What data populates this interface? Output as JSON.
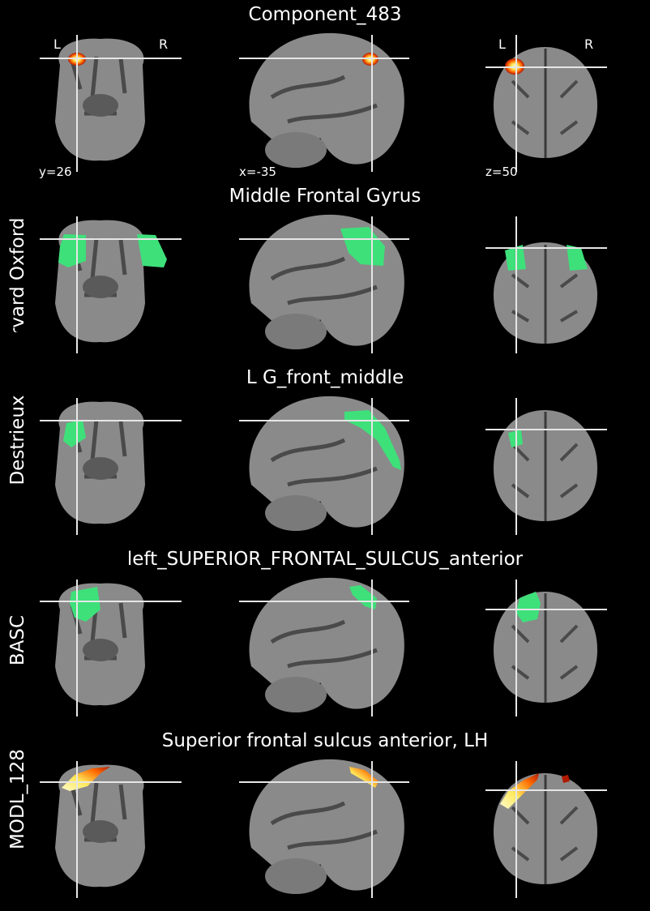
{
  "rows": [
    {
      "title": "Component_483",
      "side_label": "",
      "overlay": "heat",
      "orientation": {
        "left": "L",
        "right": "R"
      },
      "coords": {
        "coronal": "y=26",
        "sagittal": "x=-35",
        "axial": "z=50"
      }
    },
    {
      "title": "Middle Frontal Gyrus",
      "side_label": "Harvard Oxford",
      "overlay": "green"
    },
    {
      "title": "L G_front_middle",
      "side_label": "Destrieux",
      "overlay": "green"
    },
    {
      "title": "left_SUPERIOR_FRONTAL_SULCUS_anterior",
      "side_label": "BASC",
      "overlay": "green"
    },
    {
      "title": "Superior frontal sulcus anterior, LH",
      "side_label": "MODL_128",
      "overlay": "heat"
    }
  ],
  "colors": {
    "background": "#000000",
    "brain": "#8a8a8a",
    "crosshair": "#e6e6e6",
    "atlas_overlay": "#3ee07a",
    "heat_outer": "#b01a00",
    "heat_inner": "#ffe95a"
  },
  "views": [
    "coronal",
    "sagittal",
    "axial"
  ]
}
